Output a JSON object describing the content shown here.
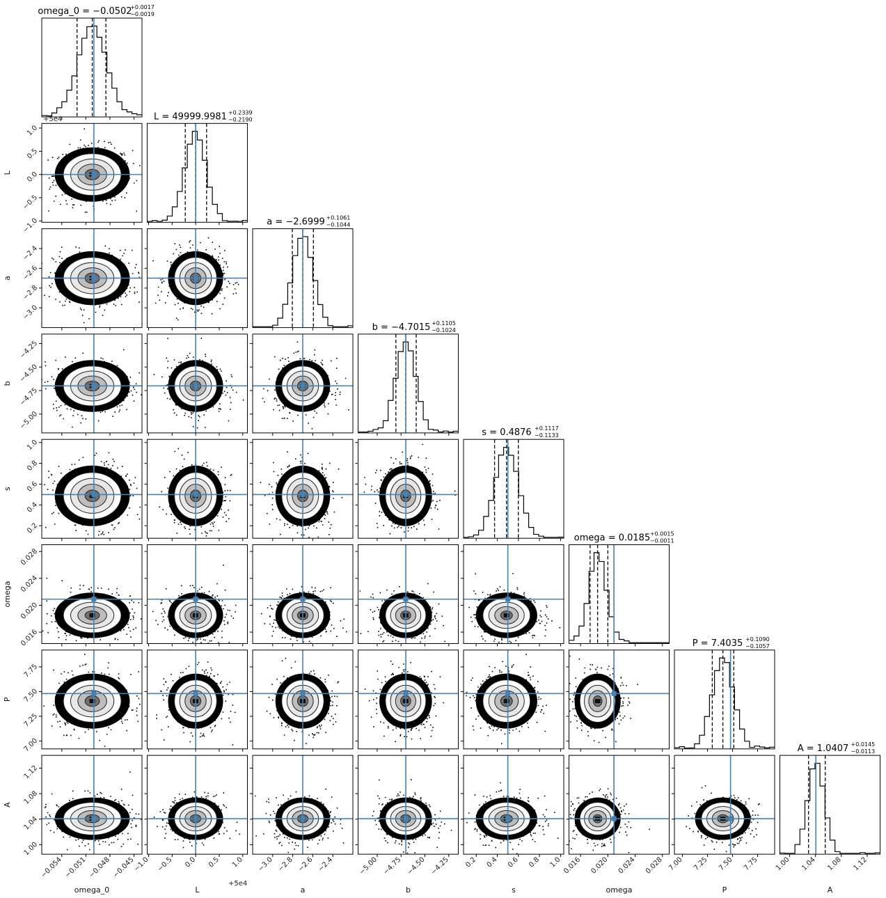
{
  "chart_data": {
    "type": "corner",
    "truth_color": "#4682b4",
    "params": [
      {
        "name": "omega_0",
        "range": [
          -0.0565,
          -0.044
        ],
        "ticks": [
          -0.054,
          -0.051,
          -0.048,
          -0.045
        ],
        "tick_labels": [
          "−0.054",
          "−0.051",
          "−0.048",
          "−0.045"
        ],
        "median": -0.0502,
        "q_lo": -0.0521,
        "q_hi": -0.0485,
        "truth": -0.05,
        "sigma": 0.0018,
        "title_main": "omega_0 = −0.0502",
        "title_sup": "+0.0017",
        "title_sub": "−0.0019"
      },
      {
        "name": "L",
        "range": [
          -1.03,
          1.1
        ],
        "ticks": [
          -1.0,
          -0.5,
          0.0,
          0.5,
          1.0
        ],
        "tick_labels": [
          "−1.0",
          "−0.5",
          "0.0",
          "0.5",
          "1.0"
        ],
        "offset": "+5e4",
        "median": -0.0019,
        "q_lo": -0.2209,
        "q_hi": 0.232,
        "truth": 0.0,
        "sigma": 0.225,
        "title_main": "L = 49999.9981",
        "title_sup": "+0.2339",
        "title_sub": "−0.2190"
      },
      {
        "name": "a",
        "range": [
          -3.2,
          -2.2
        ],
        "ticks": [
          -3.0,
          -2.8,
          -2.6,
          -2.4
        ],
        "tick_labels": [
          "−3.0",
          "−2.8",
          "−2.6",
          "−2.4"
        ],
        "median": -2.6999,
        "q_lo": -2.8043,
        "q_hi": -2.5938,
        "truth": -2.7,
        "sigma": 0.105,
        "title_main": "a = −2.6999",
        "title_sup": "+0.1061",
        "title_sub": "−0.1044"
      },
      {
        "name": "b",
        "range": [
          -5.2,
          -4.15
        ],
        "ticks": [
          -5.0,
          -4.75,
          -4.5,
          -4.25
        ],
        "tick_labels": [
          "−5.00",
          "−4.75",
          "−4.50",
          "−4.25"
        ],
        "median": -4.7015,
        "q_lo": -4.8039,
        "q_hi": -4.591,
        "truth": -4.7,
        "sigma": 0.106,
        "title_main": "b = −4.7015",
        "title_sup": "+0.1105",
        "title_sub": "−0.1024"
      },
      {
        "name": "s",
        "range": [
          0.08,
          1.03
        ],
        "ticks": [
          0.2,
          0.4,
          0.6,
          0.8,
          1.0
        ],
        "tick_labels": [
          "0.2",
          "0.4",
          "0.6",
          "0.8",
          "1.0"
        ],
        "median": 0.4876,
        "q_lo": 0.3743,
        "q_hi": 0.5993,
        "truth": 0.5,
        "sigma": 0.112,
        "title_main": "s = 0.4876",
        "title_sup": "+0.1117",
        "title_sub": "−0.1133"
      },
      {
        "name": "omega",
        "range": [
          0.0143,
          0.029
        ],
        "ticks": [
          0.016,
          0.02,
          0.024,
          0.028
        ],
        "tick_labels": [
          "0.016",
          "0.020",
          "0.024",
          "0.028"
        ],
        "median": 0.0185,
        "q_lo": 0.0174,
        "q_hi": 0.02,
        "truth": 0.0209,
        "sigma": 0.0013,
        "title_main": "omega = 0.0185",
        "title_sup": "+0.0015",
        "title_sub": "−0.0011"
      },
      {
        "name": "P",
        "range": [
          6.92,
          7.92
        ],
        "ticks": [
          7.0,
          7.25,
          7.5,
          7.75
        ],
        "tick_labels": [
          "7.00",
          "7.25",
          "7.50",
          "7.75"
        ],
        "median": 7.4035,
        "q_lo": 7.2978,
        "q_hi": 7.5125,
        "truth": 7.48,
        "sigma": 0.107,
        "title_main": "P = 7.4035",
        "title_sup": "+0.1090",
        "title_sub": "−0.1057"
      },
      {
        "name": "A",
        "range": [
          0.985,
          1.14
        ],
        "ticks": [
          1.0,
          1.04,
          1.08,
          1.12
        ],
        "tick_labels": [
          "1.00",
          "1.04",
          "1.08",
          "1.12"
        ],
        "median": 1.0407,
        "q_lo": 1.0294,
        "q_hi": 1.0552,
        "truth": 1.0407,
        "sigma": 0.0128,
        "title_main": "A = 1.0407",
        "title_sup": "+0.0145",
        "title_sub": "−0.0113"
      }
    ]
  }
}
